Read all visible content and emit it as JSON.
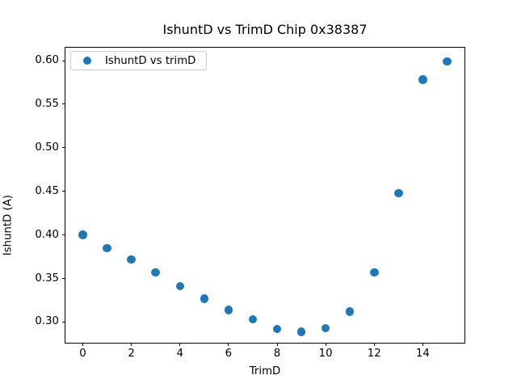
{
  "chart_data": {
    "type": "scatter",
    "title": "IshuntD vs TrimD Chip 0x38387",
    "xlabel": "TrimD",
    "ylabel": "IshuntD (A)",
    "legend": {
      "position": "upper left",
      "entries": [
        {
          "label": "IshuntD vs trimD",
          "marker_color": "#1f77b4"
        }
      ]
    },
    "x": [
      0,
      1,
      2,
      3,
      4,
      5,
      6,
      7,
      8,
      9,
      10,
      11,
      12,
      13,
      14,
      15
    ],
    "y": [
      0.4,
      0.385,
      0.372,
      0.357,
      0.341,
      0.327,
      0.314,
      0.303,
      0.292,
      0.289,
      0.293,
      0.312,
      0.357,
      0.448,
      0.578,
      0.599
    ],
    "series_name": "IshuntD vs trimD",
    "marker_color": "#1f77b4",
    "xticks": [
      0,
      2,
      4,
      6,
      8,
      10,
      12,
      14
    ],
    "xtick_labels": [
      "0",
      "2",
      "4",
      "6",
      "8",
      "10",
      "12",
      "14"
    ],
    "yticks": [
      0.3,
      0.35,
      0.4,
      0.45,
      0.5,
      0.55,
      0.6
    ],
    "ytick_labels": [
      "0.30",
      "0.35",
      "0.40",
      "0.45",
      "0.50",
      "0.55",
      "0.60"
    ],
    "xlim": [
      -0.75,
      15.75
    ],
    "ylim": [
      0.2758,
      0.6158
    ],
    "grid": false,
    "background_color": "#ffffff",
    "spine_color": "#000000"
  }
}
